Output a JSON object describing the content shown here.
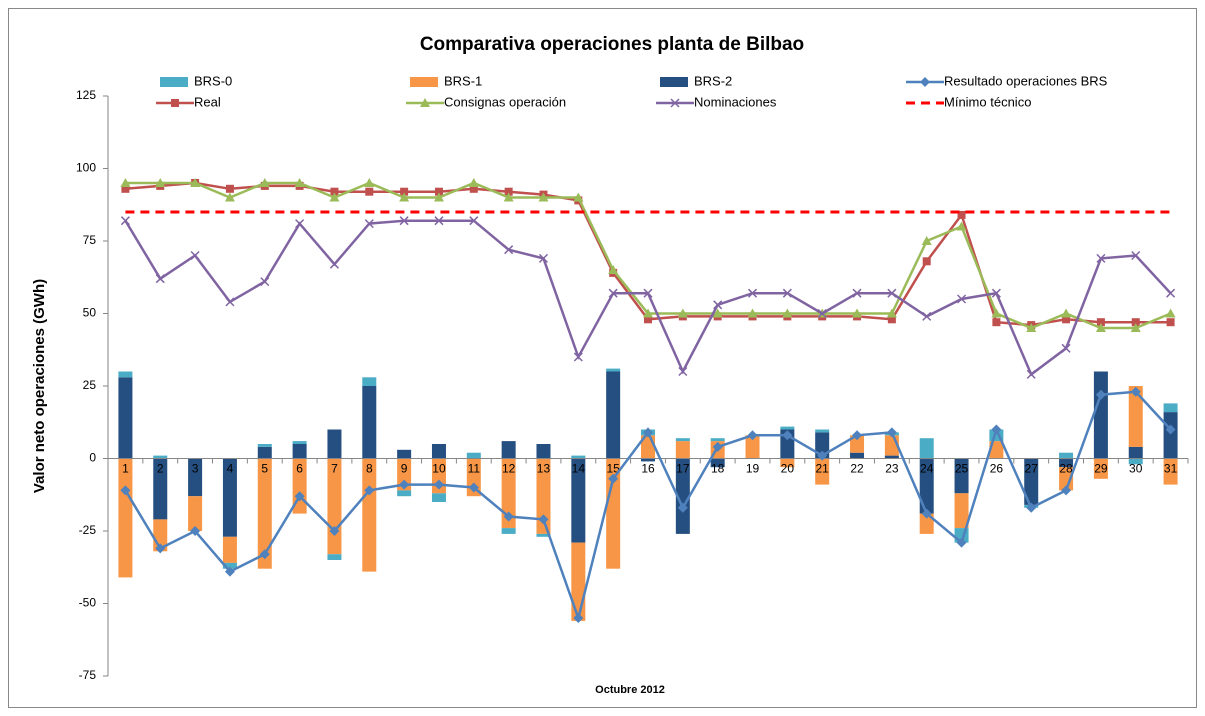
{
  "chart_data": {
    "type": "combo",
    "title": "Comparativa operaciones planta de Bilbao",
    "x_label": "Octubre 2012",
    "y_label": "Valor neto operaciones  (GWh)",
    "categories": [
      "1",
      "2",
      "3",
      "4",
      "5",
      "6",
      "7",
      "8",
      "9",
      "10",
      "11",
      "12",
      "13",
      "14",
      "15",
      "16",
      "17",
      "18",
      "19",
      "20",
      "21",
      "22",
      "23",
      "24",
      "25",
      "26",
      "27",
      "28",
      "29",
      "30",
      "31"
    ],
    "ylim": [
      -75,
      125
    ],
    "yticks": [
      -75,
      -50,
      -25,
      0,
      25,
      50,
      75,
      100,
      125
    ],
    "series": [
      {
        "name": "BRS-0",
        "kind": "bar",
        "color": "#4bacc6",
        "values": [
          2,
          1,
          0,
          -2,
          1,
          1,
          -2,
          3,
          -2,
          -3,
          2,
          -2,
          -1,
          1,
          1,
          2,
          1,
          1,
          0,
          1,
          1,
          0,
          1,
          7,
          -5,
          4,
          -1,
          2,
          0,
          -2,
          3
        ]
      },
      {
        "name": "BRS-1",
        "kind": "bar",
        "color": "#f79646",
        "values": [
          -41,
          -11,
          -12,
          -9,
          -38,
          -19,
          -33,
          -39,
          -11,
          -12,
          -13,
          -24,
          -26,
          -27,
          -38,
          8,
          6,
          6,
          8,
          -3,
          -9,
          6,
          7,
          -7,
          -12,
          6,
          0,
          -8,
          -7,
          21,
          -9
        ]
      },
      {
        "name": "BRS-2",
        "kind": "bar",
        "color": "#254f80",
        "values": [
          28,
          -21,
          -13,
          -27,
          4,
          5,
          10,
          25,
          3,
          5,
          0,
          6,
          5,
          -29,
          30,
          -1,
          -26,
          -3,
          0,
          10,
          9,
          2,
          1,
          -19,
          -12,
          0,
          -16,
          -3,
          30,
          4,
          16
        ]
      },
      {
        "name": "Resultado operaciones BRS",
        "kind": "line",
        "marker": "diamond",
        "color": "#4f81bd",
        "values": [
          -11,
          -31,
          -25,
          -39,
          -33,
          -13,
          -25,
          -11,
          -9,
          -9,
          -10,
          -20,
          -21,
          -55,
          -7,
          9,
          -17,
          4,
          8,
          8,
          1,
          8,
          9,
          -19,
          -29,
          10,
          -17,
          -11,
          22,
          23,
          10
        ]
      },
      {
        "name": "Real",
        "kind": "line",
        "marker": "square",
        "color": "#c0504d",
        "values": [
          93,
          94,
          95,
          93,
          94,
          94,
          92,
          92,
          92,
          92,
          93,
          92,
          91,
          89,
          64,
          48,
          49,
          49,
          49,
          49,
          49,
          49,
          48,
          68,
          84,
          47,
          46,
          48,
          47,
          47,
          47
        ]
      },
      {
        "name": "Consignas operación",
        "kind": "line",
        "marker": "triangle",
        "color": "#9bbb59",
        "values": [
          95,
          95,
          95,
          90,
          95,
          95,
          90,
          95,
          90,
          90,
          95,
          90,
          90,
          90,
          65,
          50,
          50,
          50,
          50,
          50,
          50,
          50,
          50,
          75,
          80,
          50,
          45,
          50,
          45,
          45,
          50
        ]
      },
      {
        "name": "Nominaciones",
        "kind": "line",
        "marker": "x",
        "color": "#8064a2",
        "values": [
          82,
          62,
          70,
          54,
          61,
          81,
          67,
          81,
          82,
          82,
          82,
          72,
          69,
          35,
          57,
          57,
          30,
          53,
          57,
          57,
          50,
          57,
          57,
          49,
          55,
          57,
          29,
          38,
          69,
          70,
          57
        ]
      },
      {
        "name": "Mínimo técnico",
        "kind": "line",
        "marker": "none",
        "dashed": true,
        "color": "#ff0000",
        "values": [
          85,
          85,
          85,
          85,
          85,
          85,
          85,
          85,
          85,
          85,
          85,
          85,
          85,
          85,
          85,
          85,
          85,
          85,
          85,
          85,
          85,
          85,
          85,
          85,
          85,
          85,
          85,
          85,
          85,
          85,
          85
        ]
      }
    ]
  }
}
